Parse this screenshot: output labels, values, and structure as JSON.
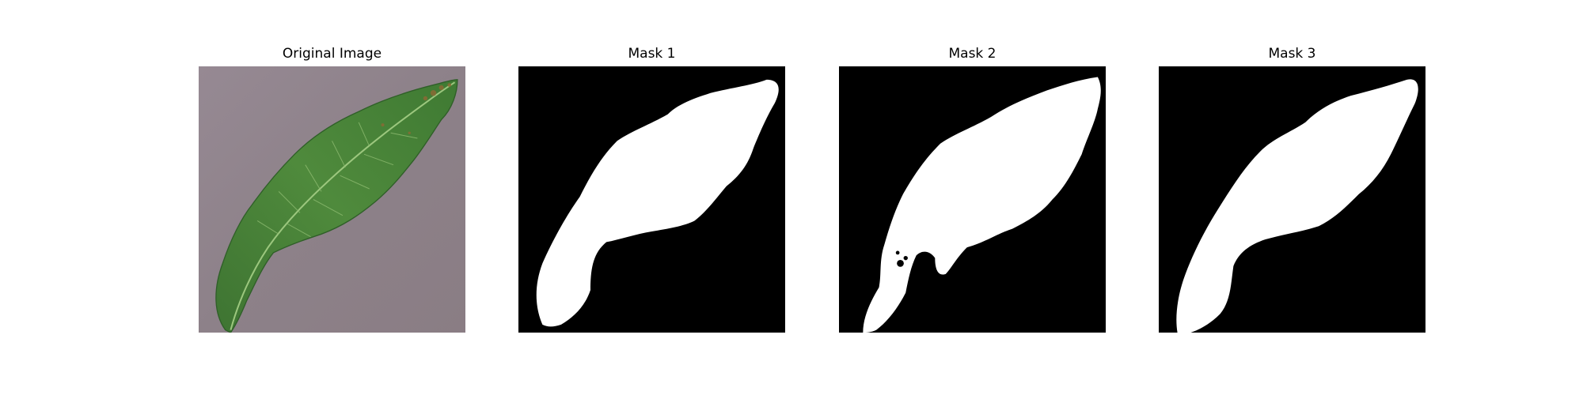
{
  "figure": {
    "panels": [
      {
        "title": "Original Image",
        "kind": "photo"
      },
      {
        "title": "Mask 1",
        "kind": "mask"
      },
      {
        "title": "Mask 2",
        "kind": "mask"
      },
      {
        "title": "Mask 3",
        "kind": "mask"
      }
    ]
  },
  "colors": {
    "background": "#ffffff",
    "mask_background": "#000000",
    "mask_foreground": "#ffffff",
    "photo_surface": "#8d8189",
    "leaf_green": "#4f8a3c",
    "leaf_dark": "#2f5f28",
    "leaf_vein": "#9cc77e",
    "leaf_spots": "#8a6a35"
  }
}
